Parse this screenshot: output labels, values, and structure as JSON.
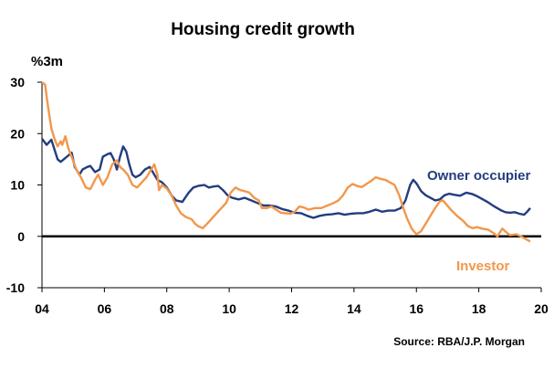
{
  "chart_data": {
    "type": "line",
    "title": "Housing credit growth",
    "ylabel": "%3m",
    "source": "Source: RBA/J.P. Morgan",
    "xlim": [
      2004,
      2020
    ],
    "ylim": [
      -10,
      30
    ],
    "x_ticks": [
      2004,
      2006,
      2008,
      2010,
      2012,
      2014,
      2016,
      2018,
      2020
    ],
    "x_tick_labels": [
      "04",
      "06",
      "08",
      "10",
      "12",
      "14",
      "16",
      "18",
      "20"
    ],
    "y_ticks": [
      -10,
      0,
      10,
      20,
      30
    ],
    "y_tick_labels": [
      "-10",
      "0",
      "10",
      "20",
      "30"
    ],
    "zero_line": true,
    "grid": false,
    "series": [
      {
        "name": "Owner occupier",
        "color": "#233d7e",
        "points": [
          [
            2004.0,
            19
          ],
          [
            2004.15,
            17.8
          ],
          [
            2004.3,
            18.8
          ],
          [
            2004.5,
            15
          ],
          [
            2004.6,
            14.5
          ],
          [
            2004.8,
            15.5
          ],
          [
            2004.95,
            16.3
          ],
          [
            2005.05,
            13.5
          ],
          [
            2005.2,
            12
          ],
          [
            2005.3,
            13
          ],
          [
            2005.45,
            13.5
          ],
          [
            2005.55,
            13.7
          ],
          [
            2005.7,
            12.5
          ],
          [
            2005.85,
            13
          ],
          [
            2005.95,
            15.5
          ],
          [
            2006.1,
            16
          ],
          [
            2006.2,
            16.2
          ],
          [
            2006.3,
            15
          ],
          [
            2006.4,
            13
          ],
          [
            2006.5,
            15.5
          ],
          [
            2006.6,
            17.5
          ],
          [
            2006.7,
            16.5
          ],
          [
            2006.8,
            14
          ],
          [
            2006.9,
            12
          ],
          [
            2007.0,
            11.5
          ],
          [
            2007.15,
            12
          ],
          [
            2007.3,
            13
          ],
          [
            2007.45,
            13.5
          ],
          [
            2007.55,
            12.5
          ],
          [
            2007.7,
            11
          ],
          [
            2007.85,
            10.5
          ],
          [
            2008.0,
            9.5
          ],
          [
            2008.15,
            8
          ],
          [
            2008.3,
            7
          ],
          [
            2008.5,
            6.7
          ],
          [
            2008.7,
            8.5
          ],
          [
            2008.85,
            9.5
          ],
          [
            2009.0,
            9.8
          ],
          [
            2009.2,
            10
          ],
          [
            2009.35,
            9.5
          ],
          [
            2009.5,
            9.7
          ],
          [
            2009.65,
            9.8
          ],
          [
            2009.8,
            9
          ],
          [
            2009.95,
            8
          ],
          [
            2010.1,
            7.5
          ],
          [
            2010.3,
            7.2
          ],
          [
            2010.5,
            7.5
          ],
          [
            2010.7,
            7
          ],
          [
            2010.9,
            6.5
          ],
          [
            2011.1,
            6
          ],
          [
            2011.3,
            6
          ],
          [
            2011.5,
            5.8
          ],
          [
            2011.7,
            5.3
          ],
          [
            2011.9,
            5
          ],
          [
            2012.1,
            4.6
          ],
          [
            2012.3,
            4.5
          ],
          [
            2012.5,
            4
          ],
          [
            2012.7,
            3.6
          ],
          [
            2012.9,
            4
          ],
          [
            2013.1,
            4.2
          ],
          [
            2013.3,
            4.3
          ],
          [
            2013.5,
            4.5
          ],
          [
            2013.7,
            4.2
          ],
          [
            2013.9,
            4.4
          ],
          [
            2014.1,
            4.5
          ],
          [
            2014.3,
            4.5
          ],
          [
            2014.5,
            4.8
          ],
          [
            2014.7,
            5.2
          ],
          [
            2014.9,
            4.8
          ],
          [
            2015.1,
            5
          ],
          [
            2015.3,
            5
          ],
          [
            2015.5,
            5.5
          ],
          [
            2015.65,
            7
          ],
          [
            2015.8,
            10
          ],
          [
            2015.9,
            11
          ],
          [
            2016.0,
            10.3
          ],
          [
            2016.15,
            8.8
          ],
          [
            2016.3,
            8
          ],
          [
            2016.45,
            7.5
          ],
          [
            2016.6,
            7
          ],
          [
            2016.75,
            7.2
          ],
          [
            2016.9,
            8
          ],
          [
            2017.05,
            8.3
          ],
          [
            2017.2,
            8.1
          ],
          [
            2017.4,
            7.9
          ],
          [
            2017.6,
            8.5
          ],
          [
            2017.8,
            8.2
          ],
          [
            2017.95,
            7.8
          ],
          [
            2018.1,
            7.3
          ],
          [
            2018.3,
            6.6
          ],
          [
            2018.5,
            5.8
          ],
          [
            2018.7,
            5.1
          ],
          [
            2018.85,
            4.7
          ],
          [
            2019.0,
            4.6
          ],
          [
            2019.15,
            4.7
          ],
          [
            2019.3,
            4.4
          ],
          [
            2019.45,
            4.2
          ],
          [
            2019.55,
            4.8
          ],
          [
            2019.65,
            5.5
          ]
        ]
      },
      {
        "name": "Investor",
        "color": "#f2974b",
        "points": [
          [
            2004.0,
            30
          ],
          [
            2004.1,
            29.5
          ],
          [
            2004.2,
            25
          ],
          [
            2004.3,
            21
          ],
          [
            2004.4,
            19
          ],
          [
            2004.5,
            17.5
          ],
          [
            2004.6,
            18.5
          ],
          [
            2004.65,
            17.8
          ],
          [
            2004.75,
            19.5
          ],
          [
            2004.85,
            17
          ],
          [
            2004.95,
            15.5
          ],
          [
            2005.1,
            13
          ],
          [
            2005.25,
            11.5
          ],
          [
            2005.4,
            9.5
          ],
          [
            2005.55,
            9.2
          ],
          [
            2005.7,
            11
          ],
          [
            2005.8,
            12
          ],
          [
            2005.95,
            10
          ],
          [
            2006.1,
            11.5
          ],
          [
            2006.25,
            14
          ],
          [
            2006.4,
            14.8
          ],
          [
            2006.5,
            13.5
          ],
          [
            2006.6,
            13
          ],
          [
            2006.75,
            12
          ],
          [
            2006.9,
            10
          ],
          [
            2007.05,
            9.5
          ],
          [
            2007.2,
            10.5
          ],
          [
            2007.35,
            11.5
          ],
          [
            2007.5,
            13
          ],
          [
            2007.6,
            14
          ],
          [
            2007.7,
            12
          ],
          [
            2007.75,
            9
          ],
          [
            2007.85,
            10
          ],
          [
            2008.0,
            9.3
          ],
          [
            2008.15,
            8
          ],
          [
            2008.3,
            6
          ],
          [
            2008.45,
            4.5
          ],
          [
            2008.6,
            3.8
          ],
          [
            2008.8,
            3.3
          ],
          [
            2008.9,
            2.5
          ],
          [
            2009.0,
            2
          ],
          [
            2009.15,
            1.6
          ],
          [
            2009.3,
            2.5
          ],
          [
            2009.45,
            3.5
          ],
          [
            2009.6,
            4.5
          ],
          [
            2009.75,
            5.5
          ],
          [
            2009.9,
            6.5
          ],
          [
            2010.05,
            8.5
          ],
          [
            2010.2,
            9.5
          ],
          [
            2010.35,
            9
          ],
          [
            2010.5,
            8.8
          ],
          [
            2010.65,
            8.5
          ],
          [
            2010.8,
            7.5
          ],
          [
            2010.95,
            7
          ],
          [
            2011.05,
            5.5
          ],
          [
            2011.2,
            5.5
          ],
          [
            2011.35,
            5.8
          ],
          [
            2011.5,
            5.2
          ],
          [
            2011.65,
            4.6
          ],
          [
            2011.8,
            4.5
          ],
          [
            2011.95,
            4.4
          ],
          [
            2012.1,
            4.8
          ],
          [
            2012.25,
            5.8
          ],
          [
            2012.4,
            5.6
          ],
          [
            2012.55,
            5.2
          ],
          [
            2012.75,
            5.5
          ],
          [
            2012.95,
            5.5
          ],
          [
            2013.15,
            6
          ],
          [
            2013.35,
            6.5
          ],
          [
            2013.5,
            7
          ],
          [
            2013.65,
            8
          ],
          [
            2013.8,
            9.5
          ],
          [
            2013.95,
            10.2
          ],
          [
            2014.1,
            9.8
          ],
          [
            2014.25,
            9.6
          ],
          [
            2014.4,
            10.2
          ],
          [
            2014.55,
            10.8
          ],
          [
            2014.7,
            11.5
          ],
          [
            2014.85,
            11.2
          ],
          [
            2015.0,
            11
          ],
          [
            2015.15,
            10.5
          ],
          [
            2015.3,
            10
          ],
          [
            2015.45,
            8
          ],
          [
            2015.55,
            6
          ],
          [
            2015.7,
            3.5
          ],
          [
            2015.85,
            1.5
          ],
          [
            2016.0,
            0.4
          ],
          [
            2016.15,
            1
          ],
          [
            2016.3,
            2.5
          ],
          [
            2016.45,
            4
          ],
          [
            2016.6,
            5.5
          ],
          [
            2016.75,
            6.8
          ],
          [
            2016.85,
            7
          ],
          [
            2016.95,
            6.3
          ],
          [
            2017.1,
            5.2
          ],
          [
            2017.3,
            4
          ],
          [
            2017.5,
            3
          ],
          [
            2017.65,
            2
          ],
          [
            2017.8,
            1.6
          ],
          [
            2017.95,
            1.8
          ],
          [
            2018.1,
            1.5
          ],
          [
            2018.3,
            1.3
          ],
          [
            2018.5,
            0.5
          ],
          [
            2018.6,
            0
          ],
          [
            2018.75,
            1.5
          ],
          [
            2018.9,
            0.7
          ],
          [
            2019.0,
            0.2
          ],
          [
            2019.2,
            0.4
          ],
          [
            2019.35,
            0
          ],
          [
            2019.5,
            -0.5
          ],
          [
            2019.65,
            -1
          ]
        ]
      }
    ]
  }
}
